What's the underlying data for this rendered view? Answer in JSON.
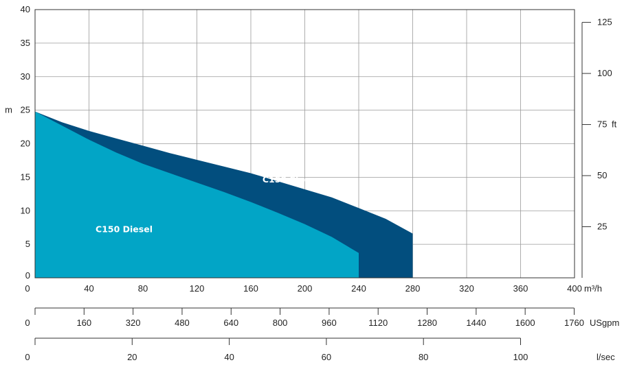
{
  "chart_data": {
    "type": "area",
    "x_unit": "m³/h",
    "x": {
      "ticks": [
        0,
        40,
        80,
        120,
        160,
        200,
        240,
        280,
        320,
        360,
        400
      ],
      "unit": "m³/h",
      "range": [
        0,
        400
      ]
    },
    "y_left": {
      "label": "m",
      "ticks": [
        5,
        10,
        15,
        20,
        25,
        30,
        35,
        40
      ],
      "range": [
        0,
        40
      ]
    },
    "y_right": {
      "label": "ft",
      "ticks": [
        25,
        50,
        75,
        100,
        125
      ]
    },
    "secondary_x_axes": [
      {
        "unit": "USgpm",
        "ticks": [
          0,
          160,
          320,
          480,
          640,
          800,
          960,
          1120,
          1280,
          1440,
          1600,
          1760
        ]
      },
      {
        "unit": "l/sec",
        "ticks": [
          0,
          20,
          40,
          60,
          80,
          100
        ]
      }
    ],
    "series": [
      {
        "name": "C150 Elec",
        "color": "#024e7e",
        "points": [
          [
            0,
            24.8
          ],
          [
            20,
            23.2
          ],
          [
            40,
            21.9
          ],
          [
            60,
            20.8
          ],
          [
            80,
            19.7
          ],
          [
            100,
            18.6
          ],
          [
            120,
            17.6
          ],
          [
            140,
            16.6
          ],
          [
            160,
            15.6
          ],
          [
            180,
            14.4
          ],
          [
            200,
            13.2
          ],
          [
            220,
            12.0
          ],
          [
            240,
            10.4
          ],
          [
            260,
            8.8
          ],
          [
            280,
            6.6
          ]
        ]
      },
      {
        "name": "C150 Diesel",
        "color": "#02a5c6",
        "points": [
          [
            0,
            24.8
          ],
          [
            20,
            22.7
          ],
          [
            40,
            20.6
          ],
          [
            60,
            18.7
          ],
          [
            80,
            17.0
          ],
          [
            100,
            15.6
          ],
          [
            120,
            14.2
          ],
          [
            140,
            12.8
          ],
          [
            160,
            11.3
          ],
          [
            180,
            9.7
          ],
          [
            200,
            8.0
          ],
          [
            220,
            6.1
          ],
          [
            240,
            3.7
          ]
        ]
      }
    ],
    "grid": true,
    "legend": "in-plot labels"
  }
}
